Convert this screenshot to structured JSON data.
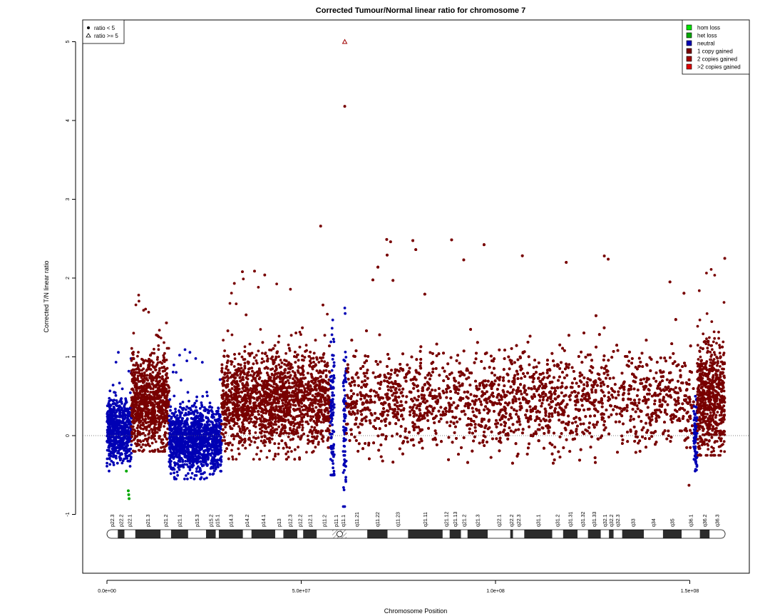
{
  "chart_data": {
    "type": "scatter",
    "title": "Corrected Tumour/Normal linear ratio for chromosome  7",
    "xlabel": "Chromosome Position",
    "ylabel": "Corrected T/N linear ratio",
    "xlim": [
      0,
      159000000
    ],
    "ylim": [
      -1.5,
      5.2
    ],
    "x_ticks": [
      {
        "value": 0,
        "label": "0.0e+00"
      },
      {
        "value": 50000000,
        "label": "5.0e+07"
      },
      {
        "value": 100000000,
        "label": "1.0e+08"
      },
      {
        "value": 150000000,
        "label": "1.5e+08"
      }
    ],
    "y_ticks": [
      {
        "value": -1,
        "label": "-1"
      },
      {
        "value": 0,
        "label": "0"
      },
      {
        "value": 1,
        "label": "1"
      },
      {
        "value": 2,
        "label": "2"
      },
      {
        "value": 3,
        "label": "3"
      },
      {
        "value": 4,
        "label": "4"
      },
      {
        "value": 5,
        "label": "5"
      }
    ],
    "reference_line": {
      "y": 0,
      "style": "dotted"
    },
    "shape_legend": {
      "placement": "top-left",
      "items": [
        {
          "symbol": "dot",
          "label": "ratio < 5"
        },
        {
          "symbol": "triangle",
          "label": "ratio >= 5"
        }
      ]
    },
    "color_legend": {
      "placement": "top-right",
      "items": [
        {
          "label": "hom loss",
          "color": "#00e600"
        },
        {
          "label": "het loss",
          "color": "#00a800"
        },
        {
          "label": "neutral",
          "color": "#0000b4"
        },
        {
          "label": "1 copy gained",
          "color": "#780000"
        },
        {
          "label": "2 copies gained",
          "color": "#a00000"
        },
        {
          "label": ">2 copies gained",
          "color": "#e00000"
        }
      ]
    },
    "segments": [
      {
        "state": "neutral",
        "color": "#0000b4",
        "x_start": 0,
        "x_end": 6300000,
        "mean": 0.05,
        "spread": 0.2,
        "ymin": -0.45,
        "ymax": 1.1
      },
      {
        "state": "1 copy gained",
        "color": "#780000",
        "x_start": 6300000,
        "x_end": 16000000,
        "mean": 0.42,
        "spread": 0.3,
        "ymin": -0.2,
        "ymax": 1.8
      },
      {
        "state": "neutral",
        "color": "#0000b4",
        "x_start": 16000000,
        "x_end": 29500000,
        "mean": -0.05,
        "spread": 0.2,
        "ymin": -0.55,
        "ymax": 1.1
      },
      {
        "state": "1 copy gained",
        "color": "#780000",
        "x_start": 29500000,
        "x_end": 57500000,
        "mean": 0.45,
        "spread": 0.3,
        "ymin": -0.3,
        "ymax": 2.1
      },
      {
        "state": "neutral",
        "color": "#0000b4",
        "x_start": 57500000,
        "x_end": 58500000,
        "mean": 0.3,
        "spread": 0.5,
        "ymin": -0.5,
        "ymax": 1.5
      },
      {
        "state": "neutral",
        "color": "#0000b4",
        "x_start": 60800000,
        "x_end": 61600000,
        "mean": 0.1,
        "spread": 0.5,
        "ymin": -0.9,
        "ymax": 1.8
      },
      {
        "state": "1 copy gained",
        "color": "#780000",
        "x_start": 61600000,
        "x_end": 151000000,
        "mean": 0.45,
        "spread": 0.3,
        "ymin": -0.35,
        "ymax": 2.5
      },
      {
        "state": "neutral",
        "color": "#0000b4",
        "x_start": 151000000,
        "x_end": 151900000,
        "mean": 0.0,
        "spread": 0.25,
        "ymin": -0.45,
        "ymax": 0.5
      },
      {
        "state": "1 copy gained",
        "color": "#780000",
        "x_start": 151900000,
        "x_end": 159000000,
        "mean": 0.5,
        "spread": 0.35,
        "ymin": -0.25,
        "ymax": 2.3
      }
    ],
    "notable_points": [
      {
        "x": 61200000,
        "y": 5.0,
        "symbol": "triangle",
        "color": "#a00000",
        "label": "ratio >= 5"
      },
      {
        "x": 61200000,
        "y": 4.18,
        "symbol": "dot",
        "color": "#780000"
      },
      {
        "x": 55000000,
        "y": 2.66,
        "symbol": "dot",
        "color": "#780000"
      },
      {
        "x": 72000000,
        "y": 2.49,
        "symbol": "dot",
        "color": "#780000"
      },
      {
        "x": 73000000,
        "y": 2.46,
        "symbol": "dot",
        "color": "#780000"
      },
      {
        "x": 128000000,
        "y": 2.28,
        "symbol": "dot",
        "color": "#780000"
      },
      {
        "x": 129000000,
        "y": 2.24,
        "symbol": "dot",
        "color": "#780000"
      },
      {
        "x": 159000000,
        "y": 2.25,
        "symbol": "dot",
        "color": "#780000"
      },
      {
        "x": 5000000,
        "y": -0.45,
        "symbol": "dot",
        "color": "#00a800"
      },
      {
        "x": 5500000,
        "y": -0.7,
        "symbol": "dot",
        "color": "#00a800"
      },
      {
        "x": 5600000,
        "y": -0.75,
        "symbol": "dot",
        "color": "#00a800"
      },
      {
        "x": 5700000,
        "y": -0.8,
        "symbol": "dot",
        "color": "#00a800"
      },
      {
        "x": 149800000,
        "y": -0.63,
        "symbol": "dot",
        "color": "#780000"
      }
    ],
    "ideogram": {
      "bands": [
        {
          "name": "p22.3",
          "start": 0,
          "end": 2800000,
          "stain": "gneg"
        },
        {
          "name": "p22.2",
          "start": 2800000,
          "end": 4500000,
          "stain": "dark"
        },
        {
          "name": "p22.1",
          "start": 4500000,
          "end": 7300000,
          "stain": "gneg"
        },
        {
          "name": "p21.3",
          "start": 7300000,
          "end": 13800000,
          "stain": "dark"
        },
        {
          "name": "p21.2",
          "start": 13800000,
          "end": 16500000,
          "stain": "gneg"
        },
        {
          "name": "p21.1",
          "start": 16500000,
          "end": 20900000,
          "stain": "dark"
        },
        {
          "name": "p15.3",
          "start": 20900000,
          "end": 25500000,
          "stain": "gneg"
        },
        {
          "name": "p15.2",
          "start": 25500000,
          "end": 28000000,
          "stain": "dark"
        },
        {
          "name": "p15.1",
          "start": 28000000,
          "end": 28800000,
          "stain": "gneg"
        },
        {
          "name": "p14.3",
          "start": 28800000,
          "end": 35000000,
          "stain": "dark"
        },
        {
          "name": "p14.2",
          "start": 35000000,
          "end": 37200000,
          "stain": "gneg"
        },
        {
          "name": "p14.1",
          "start": 37200000,
          "end": 43300000,
          "stain": "dark"
        },
        {
          "name": "p13",
          "start": 43300000,
          "end": 45400000,
          "stain": "gneg"
        },
        {
          "name": "p12.3",
          "start": 45400000,
          "end": 49000000,
          "stain": "dark"
        },
        {
          "name": "p12.2",
          "start": 49000000,
          "end": 50500000,
          "stain": "gneg"
        },
        {
          "name": "p12.1",
          "start": 50500000,
          "end": 54000000,
          "stain": "dark"
        },
        {
          "name": "p11.2",
          "start": 54000000,
          "end": 58000000,
          "stain": "gneg"
        },
        {
          "name": "p11.1",
          "start": 58000000,
          "end": 59900000,
          "stain": "acen"
        },
        {
          "name": "q11.1",
          "start": 59900000,
          "end": 61700000,
          "stain": "acen"
        },
        {
          "name": "q11.21",
          "start": 61700000,
          "end": 67000000,
          "stain": "gneg"
        },
        {
          "name": "q11.22",
          "start": 67000000,
          "end": 72200000,
          "stain": "dark"
        },
        {
          "name": "q11.23",
          "start": 72200000,
          "end": 77500000,
          "stain": "gneg"
        },
        {
          "name": "q21.11",
          "start": 77500000,
          "end": 86400000,
          "stain": "dark"
        },
        {
          "name": "q21.12",
          "start": 86400000,
          "end": 88200000,
          "stain": "gneg"
        },
        {
          "name": "q21.13",
          "start": 88200000,
          "end": 91100000,
          "stain": "dark"
        },
        {
          "name": "q21.2",
          "start": 91100000,
          "end": 92800000,
          "stain": "gneg"
        },
        {
          "name": "q21.3",
          "start": 92800000,
          "end": 98000000,
          "stain": "dark"
        },
        {
          "name": "q22.1",
          "start": 98000000,
          "end": 103800000,
          "stain": "gneg"
        },
        {
          "name": "q22.2",
          "start": 103800000,
          "end": 104500000,
          "stain": "dark"
        },
        {
          "name": "q22.3",
          "start": 104500000,
          "end": 107400000,
          "stain": "gneg"
        },
        {
          "name": "q31.1",
          "start": 107400000,
          "end": 114600000,
          "stain": "dark"
        },
        {
          "name": "q31.2",
          "start": 114600000,
          "end": 117400000,
          "stain": "gneg"
        },
        {
          "name": "q31.31",
          "start": 117400000,
          "end": 121100000,
          "stain": "dark"
        },
        {
          "name": "q31.32",
          "start": 121100000,
          "end": 123800000,
          "stain": "gneg"
        },
        {
          "name": "q31.33",
          "start": 123800000,
          "end": 127100000,
          "stain": "dark"
        },
        {
          "name": "q32.1",
          "start": 127100000,
          "end": 129200000,
          "stain": "gneg"
        },
        {
          "name": "q32.2",
          "start": 129200000,
          "end": 130400000,
          "stain": "dark"
        },
        {
          "name": "q32.3",
          "start": 130400000,
          "end": 132600000,
          "stain": "gneg"
        },
        {
          "name": "q33",
          "start": 132600000,
          "end": 138200000,
          "stain": "dark"
        },
        {
          "name": "q34",
          "start": 138200000,
          "end": 143100000,
          "stain": "gneg"
        },
        {
          "name": "q35",
          "start": 143100000,
          "end": 147900000,
          "stain": "dark"
        },
        {
          "name": "q36.1",
          "start": 147900000,
          "end": 152600000,
          "stain": "gneg"
        },
        {
          "name": "q36.2",
          "start": 152600000,
          "end": 155100000,
          "stain": "dark"
        },
        {
          "name": "q36.3",
          "start": 155100000,
          "end": 159100000,
          "stain": "gneg"
        }
      ]
    }
  }
}
